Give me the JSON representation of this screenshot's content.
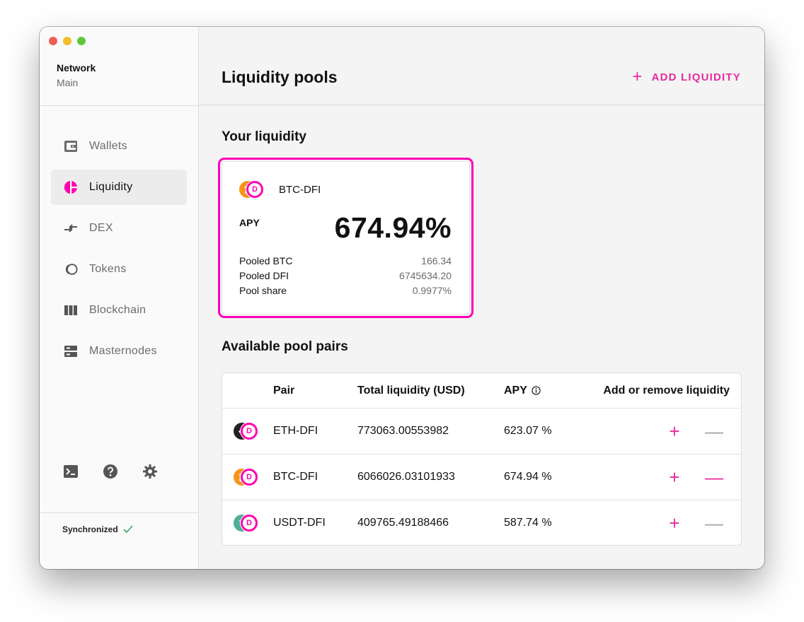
{
  "sidebar": {
    "network_label": "Network",
    "network_value": "Main",
    "items": [
      {
        "label": "Wallets",
        "icon": "wallet-icon"
      },
      {
        "label": "Liquidity",
        "icon": "liquidity-icon"
      },
      {
        "label": "DEX",
        "icon": "swap-arrows-icon"
      },
      {
        "label": "Tokens",
        "icon": "tokens-icon"
      },
      {
        "label": "Blockchain",
        "icon": "blockchain-icon"
      },
      {
        "label": "Masternodes",
        "icon": "server-icon"
      }
    ],
    "active_item": "Liquidity",
    "bottom_icons": [
      "terminal-icon",
      "help-icon",
      "gear-icon"
    ],
    "sync_status": "Synchronized"
  },
  "header": {
    "title": "Liquidity pools",
    "add_liquidity": "ADD LIQUIDITY"
  },
  "your_liquidity": {
    "title": "Your liquidity",
    "card": {
      "pair": "BTC-DFI",
      "apy_label": "APY",
      "apy_value": "674.94%",
      "stats": [
        {
          "label": "Pooled BTC",
          "value": "166.34"
        },
        {
          "label": "Pooled DFI",
          "value": "6745634.20"
        },
        {
          "label": "Pool share",
          "value": "0.9977%"
        }
      ]
    }
  },
  "available_pools": {
    "title": "Available pool pairs",
    "columns": {
      "pair": "Pair",
      "total": "Total liquidity (USD)",
      "apy": "APY",
      "actions": "Add or remove liquidity"
    },
    "rows": [
      {
        "pair": "ETH-DFI",
        "total": "773063.00553982",
        "apy": "623.07 %",
        "coin_color": "#222222",
        "coin_glyph": "◆",
        "remove_enabled": false
      },
      {
        "pair": "BTC-DFI",
        "total": "6066026.03101933",
        "apy": "674.94 %",
        "coin_color": "#f7931a",
        "coin_glyph": "₿",
        "remove_enabled": true
      },
      {
        "pair": "USDT-DFI",
        "total": "409765.49188466",
        "apy": "587.74 %",
        "coin_color": "#50af95",
        "coin_glyph": "T",
        "remove_enabled": false
      }
    ]
  },
  "colors": {
    "accent": "#e9299f",
    "dfi": "#ff00af",
    "btc": "#f7931a",
    "sync_ok": "#3ba45a"
  }
}
